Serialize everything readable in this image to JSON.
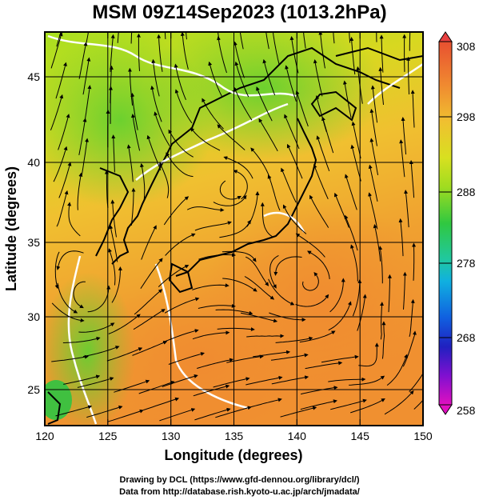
{
  "title": "MSM 09Z14Sep2023 (1013.2hPa)",
  "axes": {
    "xlabel": "Longitude (degrees)",
    "ylabel": "Latitude  (degrees)",
    "xticks": [
      "120",
      "125",
      "130",
      "135",
      "140",
      "145",
      "150"
    ],
    "yticks": [
      "25",
      "30",
      "35",
      "40",
      "45"
    ]
  },
  "colorbar": {
    "labels": [
      "308",
      "298",
      "288",
      "278",
      "268",
      "258"
    ],
    "range": [
      258,
      308
    ],
    "colors": [
      "#dd00dd",
      "#2222cc",
      "#00aaee",
      "#22cc44",
      "#aaee00",
      "#f0c020",
      "#f08030",
      "#e84040"
    ]
  },
  "credits": {
    "line1": "Drawing by DCL (https://www.gfd-dennou.org/library/dcl/)",
    "line2": "Data from http://database.rish.kyoto-u.ac.jp/arch/jmadata/"
  }
}
